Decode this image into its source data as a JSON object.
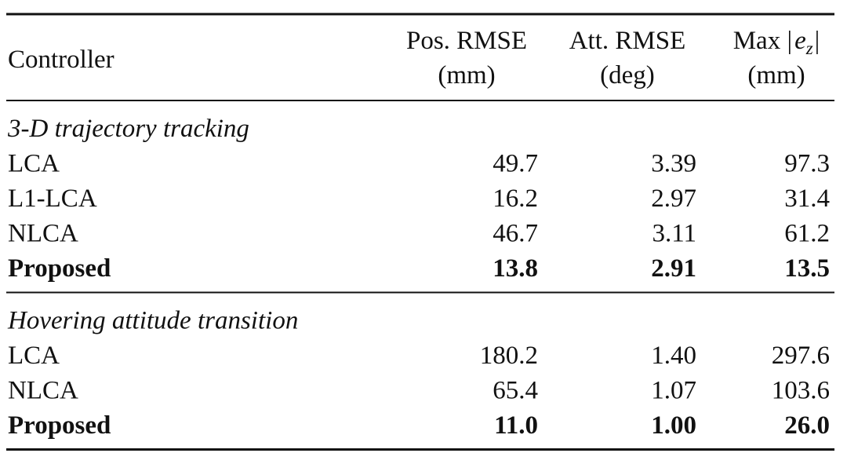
{
  "table": {
    "header": {
      "label": "Controller",
      "columns": [
        {
          "line1": [
            "Pos. RMSE"
          ],
          "line2": "(mm)"
        },
        {
          "line1": [
            "Att. RMSE"
          ],
          "line2": "(deg)"
        },
        {
          "line1": [
            "Max |",
            "e",
            "z",
            "|"
          ],
          "line2": "(mm)"
        }
      ]
    },
    "sections": [
      {
        "title": "3-D trajectory tracking",
        "rows": [
          {
            "label": "LCA",
            "values": [
              "49.7",
              "3.39",
              "97.3"
            ],
            "bold": false
          },
          {
            "label": "L1-LCA",
            "values": [
              "16.2",
              "2.97",
              "31.4"
            ],
            "bold": false
          },
          {
            "label": "NLCA",
            "values": [
              "46.7",
              "3.11",
              "61.2"
            ],
            "bold": false
          },
          {
            "label": "Proposed",
            "values": [
              "13.8",
              "2.91",
              "13.5"
            ],
            "bold": true
          }
        ]
      },
      {
        "title": "Hovering attitude transition",
        "rows": [
          {
            "label": "LCA",
            "values": [
              "180.2",
              "1.40",
              "297.6"
            ],
            "bold": false
          },
          {
            "label": "NLCA",
            "values": [
              "65.4",
              "1.07",
              "103.6"
            ],
            "bold": false
          },
          {
            "label": "Proposed",
            "values": [
              "11.0",
              "1.00",
              "26.0"
            ],
            "bold": true
          }
        ]
      }
    ]
  }
}
